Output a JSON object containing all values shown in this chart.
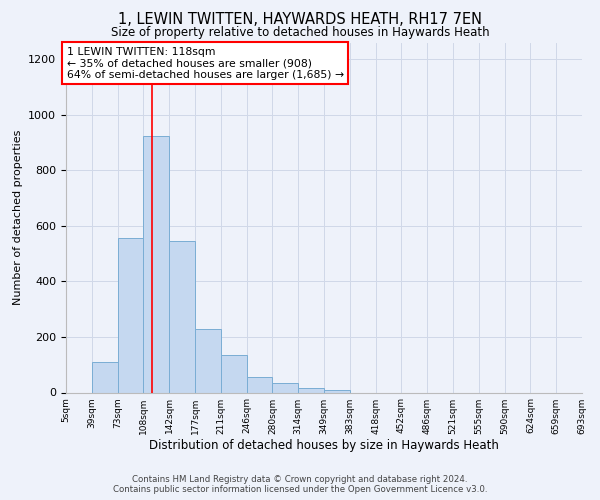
{
  "title": "1, LEWIN TWITTEN, HAYWARDS HEATH, RH17 7EN",
  "subtitle": "Size of property relative to detached houses in Haywards Heath",
  "xlabel": "Distribution of detached houses by size in Haywards Heath",
  "ylabel": "Number of detached properties",
  "footer_line1": "Contains HM Land Registry data © Crown copyright and database right 2024.",
  "footer_line2": "Contains public sector information licensed under the Open Government Licence v3.0.",
  "bin_labels": [
    "5sqm",
    "39sqm",
    "73sqm",
    "108sqm",
    "142sqm",
    "177sqm",
    "211sqm",
    "246sqm",
    "280sqm",
    "314sqm",
    "349sqm",
    "383sqm",
    "418sqm",
    "452sqm",
    "486sqm",
    "521sqm",
    "555sqm",
    "590sqm",
    "624sqm",
    "659sqm",
    "693sqm"
  ],
  "bar_values": [
    0,
    110,
    555,
    925,
    545,
    230,
    135,
    55,
    35,
    18,
    8,
    0,
    0,
    0,
    0,
    0,
    0,
    0,
    0,
    0
  ],
  "bar_color": "#c5d8f0",
  "bar_edge_color": "#7aadd4",
  "ylim": [
    0,
    1260
  ],
  "yticks": [
    0,
    200,
    400,
    600,
    800,
    1000,
    1200
  ],
  "property_label": "1 LEWIN TWITTEN: 118sqm",
  "annotation_line1": "← 35% of detached houses are smaller (908)",
  "annotation_line2": "64% of semi-detached houses are larger (1,685) →",
  "vline_x": 118,
  "grid_color": "#d0d8e8",
  "background_color": "#eef2fa"
}
